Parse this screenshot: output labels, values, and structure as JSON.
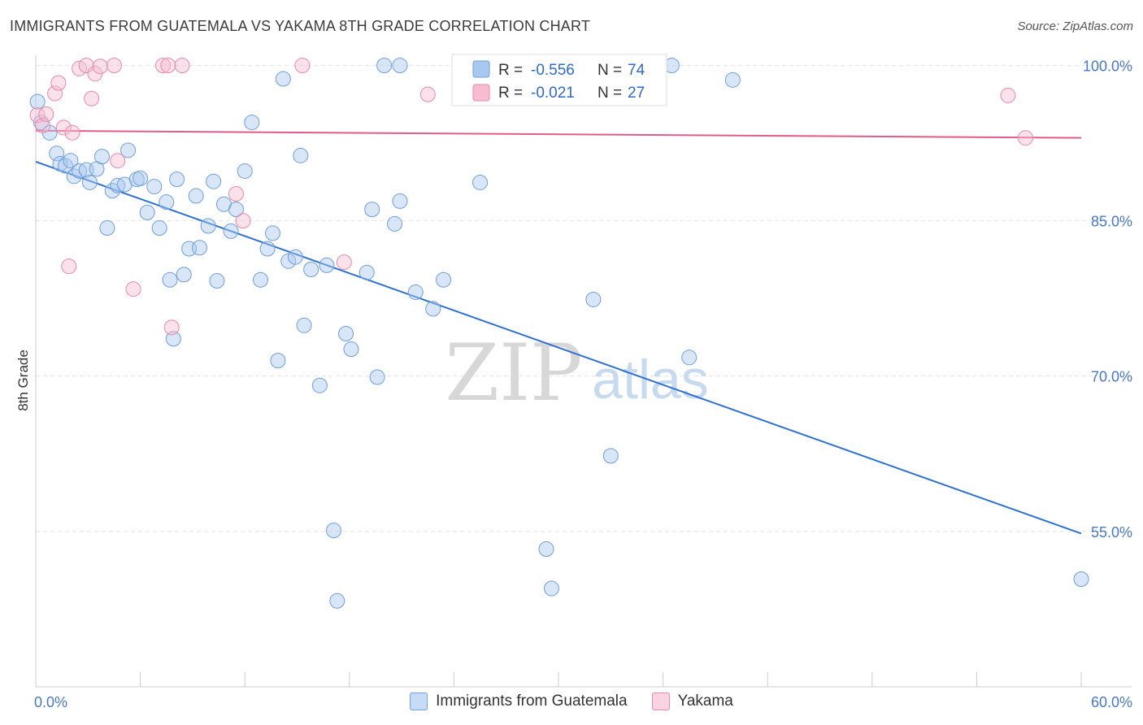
{
  "header": {
    "title": "IMMIGRANTS FROM GUATEMALA VS YAKAMA 8TH GRADE CORRELATION CHART",
    "source": "Source: ZipAtlas.com"
  },
  "watermark": {
    "zip": "ZIP",
    "atlas": "atlas"
  },
  "legend": {
    "r_label": "R =",
    "n_label": "N =",
    "series": [
      {
        "r": "-0.556",
        "n": "74",
        "color": "#a9c8f0",
        "stroke": "#6f9fdc"
      },
      {
        "r": "-0.021",
        "n": "27",
        "color": "#f7bcd0",
        "stroke": "#e88aaa"
      }
    ]
  },
  "bottom_legend": [
    {
      "label": "Immigrants from Guatemala",
      "color": "#c5dbf6",
      "stroke": "#6f9fdc"
    },
    {
      "label": "Yakama",
      "color": "#fad3e0",
      "stroke": "#e88aaa"
    }
  ],
  "chart_data": {
    "type": "scatter",
    "ylabel": "8th Grade",
    "xlim": [
      0,
      60
    ],
    "ylim": [
      40,
      102
    ],
    "x_tick_labels": [
      {
        "value": 0,
        "label": "0.0%"
      },
      {
        "value": 60,
        "label": "60.0%"
      }
    ],
    "y_tick_labels": [
      {
        "value": 100,
        "label": "100.0%"
      },
      {
        "value": 85,
        "label": "85.0%"
      },
      {
        "value": 70,
        "label": "70.0%"
      },
      {
        "value": 55,
        "label": "55.0%"
      }
    ],
    "series": [
      {
        "name": "Immigrants from Guatemala",
        "color": "#a9c8f0",
        "stroke": "#6f9fdc",
        "line_color": "#2f72d0",
        "trend": {
          "x": [
            0,
            60
          ],
          "y": [
            90.7,
            54.8
          ]
        },
        "points": [
          [
            0.1,
            96.5
          ],
          [
            0.3,
            94.5
          ],
          [
            0.8,
            93.5
          ],
          [
            1.2,
            91.5
          ],
          [
            1.4,
            90.5
          ],
          [
            1.7,
            90.3
          ],
          [
            2.0,
            90.8
          ],
          [
            2.2,
            89.3
          ],
          [
            2.5,
            89.8
          ],
          [
            2.9,
            89.9
          ],
          [
            3.1,
            88.7
          ],
          [
            3.5,
            90.0
          ],
          [
            3.8,
            91.2
          ],
          [
            4.1,
            84.3
          ],
          [
            4.4,
            87.9
          ],
          [
            4.7,
            88.4
          ],
          [
            5.1,
            88.5
          ],
          [
            5.3,
            91.8
          ],
          [
            5.8,
            89.0
          ],
          [
            6.0,
            89.1
          ],
          [
            6.4,
            85.8
          ],
          [
            6.8,
            88.3
          ],
          [
            7.1,
            84.3
          ],
          [
            7.5,
            86.8
          ],
          [
            7.7,
            79.3
          ],
          [
            7.9,
            73.6
          ],
          [
            8.1,
            89.0
          ],
          [
            8.5,
            79.8
          ],
          [
            8.8,
            82.3
          ],
          [
            9.2,
            87.4
          ],
          [
            9.4,
            82.4
          ],
          [
            9.9,
            84.5
          ],
          [
            10.2,
            88.8
          ],
          [
            10.4,
            79.2
          ],
          [
            10.8,
            86.6
          ],
          [
            11.2,
            84.0
          ],
          [
            11.5,
            86.1
          ],
          [
            12.0,
            89.8
          ],
          [
            12.4,
            94.5
          ],
          [
            12.9,
            79.3
          ],
          [
            13.3,
            82.3
          ],
          [
            13.6,
            83.8
          ],
          [
            13.9,
            71.5
          ],
          [
            14.2,
            98.7
          ],
          [
            14.5,
            81.1
          ],
          [
            14.9,
            81.5
          ],
          [
            15.2,
            91.3
          ],
          [
            15.4,
            74.9
          ],
          [
            15.8,
            80.3
          ],
          [
            16.3,
            69.1
          ],
          [
            16.7,
            80.7
          ],
          [
            17.1,
            55.1
          ],
          [
            17.3,
            48.3
          ],
          [
            17.8,
            74.1
          ],
          [
            18.1,
            72.6
          ],
          [
            19.0,
            80.0
          ],
          [
            19.3,
            86.1
          ],
          [
            19.6,
            69.9
          ],
          [
            20.0,
            100.0
          ],
          [
            20.6,
            84.7
          ],
          [
            20.9,
            86.9
          ],
          [
            20.9,
            100.0
          ],
          [
            21.8,
            78.1
          ],
          [
            22.8,
            76.5
          ],
          [
            23.4,
            79.3
          ],
          [
            25.5,
            88.7
          ],
          [
            29.3,
            53.3
          ],
          [
            29.6,
            49.5
          ],
          [
            32.0,
            77.4
          ],
          [
            33.0,
            62.3
          ],
          [
            36.5,
            100.0
          ],
          [
            37.5,
            71.8
          ],
          [
            40.0,
            98.6
          ],
          [
            60.0,
            50.4
          ]
        ]
      },
      {
        "name": "Yakama",
        "color": "#f7bcd0",
        "stroke": "#e88aaa",
        "line_color": "#e05c8a",
        "trend": {
          "x": [
            0,
            60
          ],
          "y": [
            93.7,
            93.0
          ]
        },
        "points": [
          [
            0.1,
            95.2
          ],
          [
            0.4,
            94.2
          ],
          [
            0.6,
            95.3
          ],
          [
            1.1,
            97.3
          ],
          [
            1.3,
            98.3
          ],
          [
            1.6,
            94.0
          ],
          [
            2.1,
            93.5
          ],
          [
            2.5,
            99.7
          ],
          [
            2.9,
            100.0
          ],
          [
            3.2,
            96.8
          ],
          [
            3.4,
            99.2
          ],
          [
            3.7,
            99.9
          ],
          [
            4.5,
            100.0
          ],
          [
            4.7,
            90.8
          ],
          [
            5.6,
            78.4
          ],
          [
            7.3,
            100.0
          ],
          [
            7.6,
            100.0
          ],
          [
            7.8,
            74.7
          ],
          [
            8.4,
            100.0
          ],
          [
            11.5,
            87.6
          ],
          [
            11.9,
            85.0
          ],
          [
            15.3,
            100.0
          ],
          [
            17.7,
            81.0
          ],
          [
            22.5,
            97.2
          ],
          [
            55.8,
            97.1
          ],
          [
            56.8,
            93.0
          ],
          [
            1.9,
            80.6
          ]
        ]
      }
    ]
  }
}
